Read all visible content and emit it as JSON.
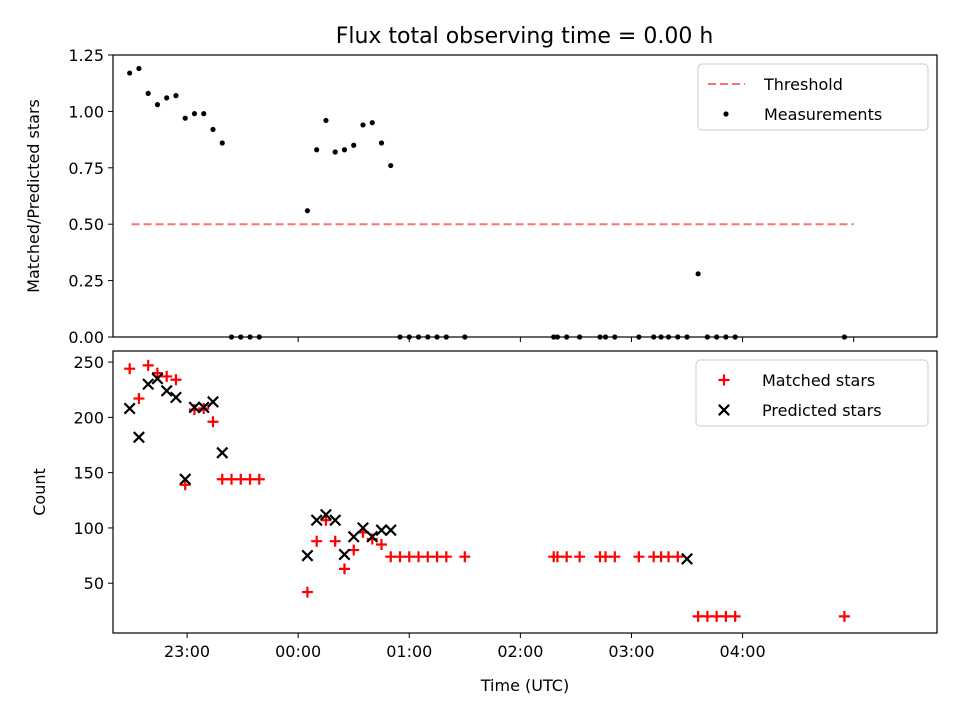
{
  "figure": {
    "title": "Flux total observing time = 0.00 h"
  },
  "chart_data": [
    {
      "panel": "top",
      "type": "scatter",
      "xlabel": "",
      "ylabel": "Matched/Predicted stars",
      "xlim": [
        -100,
        345
      ],
      "ylim": [
        0,
        1.25
      ],
      "yticks": [
        0.0,
        0.25,
        0.5,
        0.75,
        1.0,
        1.25
      ],
      "ytick_labels": [
        "0.00",
        "0.25",
        "0.50",
        "0.75",
        "1.00",
        "1.25"
      ],
      "xticks": [
        0,
        60,
        120,
        180,
        240,
        300
      ],
      "xtick_labels": [
        "",
        "",
        "",
        "",
        "",
        ""
      ],
      "threshold": {
        "name": "Threshold",
        "x": [
          -90,
          300
        ],
        "y": [
          0.5,
          0.5
        ],
        "color": "#ff7070",
        "style": "dashed"
      },
      "legend": {
        "placement": "upper right",
        "entries": [
          "Threshold",
          "Measurements"
        ]
      },
      "grid": false,
      "series": [
        {
          "name": "Measurements",
          "color": "#000000",
          "marker": "dot",
          "points": [
            [
              -91,
              1.17
            ],
            [
              -86,
              1.19
            ],
            [
              -81,
              1.08
            ],
            [
              -76,
              1.03
            ],
            [
              -71,
              1.06
            ],
            [
              -66,
              1.07
            ],
            [
              -61,
              0.97
            ],
            [
              -56,
              0.99
            ],
            [
              -51,
              0.99
            ],
            [
              -46,
              0.92
            ],
            [
              -41,
              0.86
            ],
            [
              -36,
              0.0
            ],
            [
              -31,
              0.0
            ],
            [
              -26,
              0.0
            ],
            [
              -21,
              0.0
            ],
            [
              5,
              0.56
            ],
            [
              10,
              0.83
            ],
            [
              15,
              0.96
            ],
            [
              20,
              0.82
            ],
            [
              25,
              0.83
            ],
            [
              30,
              0.85
            ],
            [
              35,
              0.94
            ],
            [
              40,
              0.95
            ],
            [
              45,
              0.86
            ],
            [
              50,
              0.76
            ],
            [
              55,
              0.0
            ],
            [
              60,
              0.0
            ],
            [
              65,
              0.0
            ],
            [
              70,
              0.0
            ],
            [
              75,
              0.0
            ],
            [
              80,
              0.0
            ],
            [
              90,
              0.0
            ],
            [
              138,
              0.0
            ],
            [
              140,
              0.0
            ],
            [
              145,
              0.0
            ],
            [
              152,
              0.0
            ],
            [
              163,
              0.0
            ],
            [
              166,
              0.0
            ],
            [
              171,
              0.0
            ],
            [
              184,
              0.0
            ],
            [
              192,
              0.0
            ],
            [
              196,
              0.0
            ],
            [
              200,
              0.0
            ],
            [
              205,
              0.0
            ],
            [
              210,
              0.0
            ],
            [
              216,
              0.28
            ],
            [
              221,
              0.0
            ],
            [
              226,
              0.0
            ],
            [
              231,
              0.0
            ],
            [
              236,
              0.0
            ],
            [
              295,
              0.0
            ]
          ]
        }
      ]
    },
    {
      "panel": "bottom",
      "type": "scatter",
      "xlabel": "Time (UTC)",
      "ylabel": "Count",
      "xlim": [
        -100,
        345
      ],
      "ylim": [
        5,
        260
      ],
      "yticks": [
        50,
        100,
        150,
        200,
        250
      ],
      "ytick_labels": [
        "50",
        "100",
        "150",
        "200",
        "250"
      ],
      "xticks": [
        -60,
        0,
        60,
        120,
        180,
        240
      ],
      "xtick_labels": [
        "23:00",
        "00:00",
        "01:00",
        "02:00",
        "03:00",
        "04:00"
      ],
      "legend": {
        "placement": "upper right",
        "entries": [
          "Matched stars",
          "Predicted stars"
        ]
      },
      "grid": false,
      "series": [
        {
          "name": "Matched stars",
          "color": "#ff0000",
          "marker": "plus",
          "points": [
            [
              -91,
              244
            ],
            [
              -86,
              217
            ],
            [
              -81,
              247
            ],
            [
              -76,
              240
            ],
            [
              -71,
              237
            ],
            [
              -66,
              234
            ],
            [
              -61,
              139
            ],
            [
              -56,
              207
            ],
            [
              -51,
              208
            ],
            [
              -46,
              196
            ],
            [
              -41,
              144
            ],
            [
              -36,
              144
            ],
            [
              -31,
              144
            ],
            [
              -26,
              144
            ],
            [
              -21,
              144
            ],
            [
              5,
              42
            ],
            [
              10,
              88
            ],
            [
              15,
              107
            ],
            [
              20,
              88
            ],
            [
              25,
              63
            ],
            [
              30,
              80
            ],
            [
              35,
              96
            ],
            [
              40,
              90
            ],
            [
              45,
              85
            ],
            [
              50,
              74
            ],
            [
              55,
              74
            ],
            [
              60,
              74
            ],
            [
              65,
              74
            ],
            [
              70,
              74
            ],
            [
              75,
              74
            ],
            [
              80,
              74
            ],
            [
              90,
              74
            ],
            [
              138,
              74
            ],
            [
              140,
              74
            ],
            [
              145,
              74
            ],
            [
              152,
              74
            ],
            [
              163,
              74
            ],
            [
              166,
              74
            ],
            [
              171,
              74
            ],
            [
              184,
              74
            ],
            [
              192,
              74
            ],
            [
              196,
              74
            ],
            [
              200,
              74
            ],
            [
              205,
              74
            ],
            [
              216,
              20
            ],
            [
              221,
              20
            ],
            [
              226,
              20
            ],
            [
              231,
              20
            ],
            [
              236,
              20
            ],
            [
              295,
              20
            ]
          ]
        },
        {
          "name": "Predicted stars",
          "color": "#000000",
          "marker": "x",
          "points": [
            [
              -91,
              208
            ],
            [
              -86,
              182
            ],
            [
              -81,
              230
            ],
            [
              -76,
              235
            ],
            [
              -71,
              224
            ],
            [
              -66,
              218
            ],
            [
              -61,
              144
            ],
            [
              -56,
              209
            ],
            [
              -51,
              209
            ],
            [
              -46,
              214
            ],
            [
              -41,
              168
            ],
            [
              5,
              75
            ],
            [
              10,
              107
            ],
            [
              15,
              112
            ],
            [
              20,
              107
            ],
            [
              25,
              76
            ],
            [
              30,
              92
            ],
            [
              35,
              100
            ],
            [
              40,
              92
            ],
            [
              45,
              98
            ],
            [
              50,
              98
            ],
            [
              210,
              72
            ]
          ]
        }
      ]
    }
  ]
}
